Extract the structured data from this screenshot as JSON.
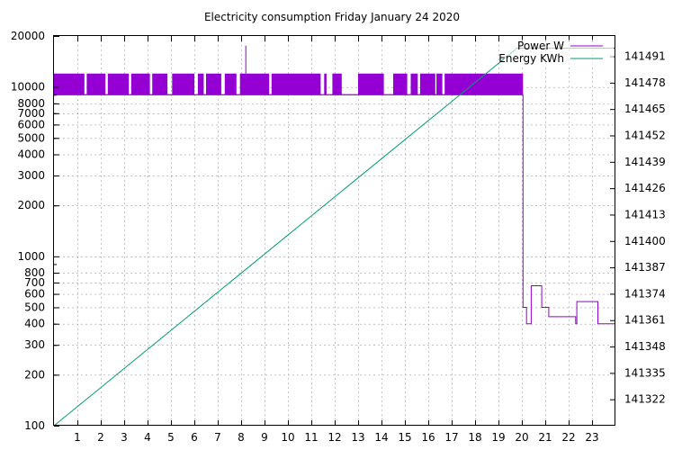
{
  "chart_data": {
    "type": "line",
    "title": "Electricity consumption Friday January 24 2020",
    "xlabel": "",
    "ylabel": "",
    "y2label": "",
    "grid": true,
    "legend_position": "top-right",
    "x_axis": {
      "range": [
        0,
        24
      ],
      "ticks": [
        1,
        2,
        3,
        4,
        5,
        6,
        7,
        8,
        9,
        10,
        11,
        12,
        13,
        14,
        15,
        16,
        17,
        18,
        19,
        20,
        21,
        22,
        23
      ]
    },
    "y_axis_left": {
      "scale": "log",
      "range": [
        100,
        20000
      ],
      "ticks": [
        100,
        200,
        300,
        400,
        500,
        600,
        700,
        800,
        1000,
        2000,
        3000,
        4000,
        5000,
        6000,
        7000,
        8000,
        10000,
        20000
      ]
    },
    "y_axis_right": {
      "scale": "linear",
      "range": [
        141309,
        141501
      ],
      "ticks": [
        141322,
        141335,
        141348,
        141361,
        141374,
        141387,
        141400,
        141413,
        141426,
        141439,
        141452,
        141465,
        141478,
        141491
      ]
    },
    "series": [
      {
        "name": "Power W",
        "axis": "left",
        "color": "#9400d3",
        "style": "steps",
        "high_band": [
          [
            0.0,
            1.3
          ],
          [
            1.4,
            2.2
          ],
          [
            2.3,
            3.2
          ],
          [
            3.3,
            4.1
          ],
          [
            4.2,
            4.85
          ],
          [
            5.05,
            6.0
          ],
          [
            6.15,
            6.4
          ],
          [
            6.5,
            7.15
          ],
          [
            7.3,
            7.8
          ],
          [
            7.95,
            9.2
          ],
          [
            9.3,
            11.4
          ],
          [
            11.55,
            11.65
          ],
          [
            11.9,
            12.3
          ],
          [
            13.0,
            14.1
          ],
          [
            14.5,
            15.1
          ],
          [
            15.25,
            15.55
          ],
          [
            15.65,
            16.3
          ],
          [
            16.35,
            16.6
          ],
          [
            16.7,
            20.05
          ]
        ],
        "high_level": 12000,
        "low_level": 9000,
        "spike": [
          8.2,
          17500
        ],
        "tail": [
          [
            20.05,
            500
          ],
          [
            20.2,
            400
          ],
          [
            20.4,
            670
          ],
          [
            20.85,
            500
          ],
          [
            21.15,
            440
          ],
          [
            22.3,
            400
          ],
          [
            22.35,
            540
          ],
          [
            23.25,
            400
          ],
          [
            24.0,
            400
          ]
        ]
      },
      {
        "name": "Energy KWh",
        "axis": "right",
        "color": "#009e73",
        "points": [
          [
            0.0,
            141309
          ],
          [
            19.8,
            141495
          ],
          [
            24.0,
            141495
          ]
        ]
      }
    ]
  }
}
